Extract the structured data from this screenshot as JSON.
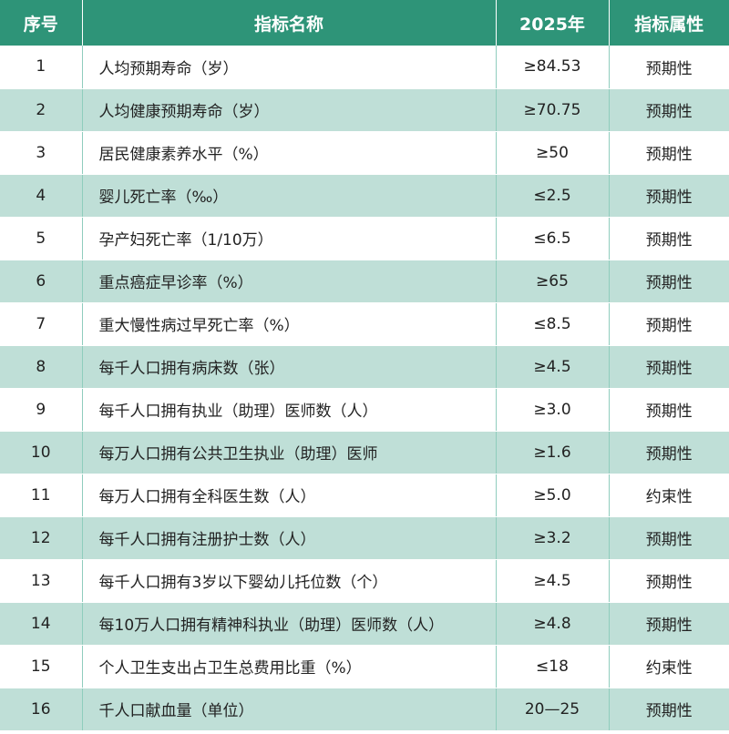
{
  "table": {
    "headers": {
      "index": "序号",
      "name": "指标名称",
      "target": "2025年",
      "attribute": "指标属性"
    },
    "rows": [
      {
        "index": "1",
        "name": "人均预期寿命（岁）",
        "target": "≥84.53",
        "attribute": "预期性"
      },
      {
        "index": "2",
        "name": "人均健康预期寿命（岁）",
        "target": "≥70.75",
        "attribute": "预期性"
      },
      {
        "index": "3",
        "name": "居民健康素养水平（%）",
        "target": "≥50",
        "attribute": "预期性"
      },
      {
        "index": "4",
        "name": "婴儿死亡率（‰）",
        "target": "≤2.5",
        "attribute": "预期性"
      },
      {
        "index": "5",
        "name": "孕产妇死亡率（1/10万）",
        "target": "≤6.5",
        "attribute": "预期性"
      },
      {
        "index": "6",
        "name": "重点癌症早诊率（%）",
        "target": "≥65",
        "attribute": "预期性"
      },
      {
        "index": "7",
        "name": "重大慢性病过早死亡率（%）",
        "target": "≤8.5",
        "attribute": "预期性"
      },
      {
        "index": "8",
        "name": "每千人口拥有病床数（张）",
        "target": "≥4.5",
        "attribute": "预期性"
      },
      {
        "index": "9",
        "name": "每千人口拥有执业（助理）医师数（人）",
        "target": "≥3.0",
        "attribute": "预期性"
      },
      {
        "index": "10",
        "name": "每万人口拥有公共卫生执业（助理）医师",
        "target": "≥1.6",
        "attribute": "预期性"
      },
      {
        "index": "11",
        "name": "每万人口拥有全科医生数（人）",
        "target": "≥5.0",
        "attribute": "约束性"
      },
      {
        "index": "12",
        "name": "每千人口拥有注册护士数（人）",
        "target": "≥3.2",
        "attribute": "预期性"
      },
      {
        "index": "13",
        "name": "每千人口拥有3岁以下婴幼儿托位数（个）",
        "target": "≥4.5",
        "attribute": "预期性"
      },
      {
        "index": "14",
        "name": "每10万人口拥有精神科执业（助理）医师数（人）",
        "target": "≥4.8",
        "attribute": "预期性"
      },
      {
        "index": "15",
        "name": "个人卫生支出占卫生总费用比重（%）",
        "target": "≤18",
        "attribute": "约束性"
      },
      {
        "index": "16",
        "name": "千人口献血量（单位）",
        "target": "20—25",
        "attribute": "预期性"
      }
    ]
  }
}
